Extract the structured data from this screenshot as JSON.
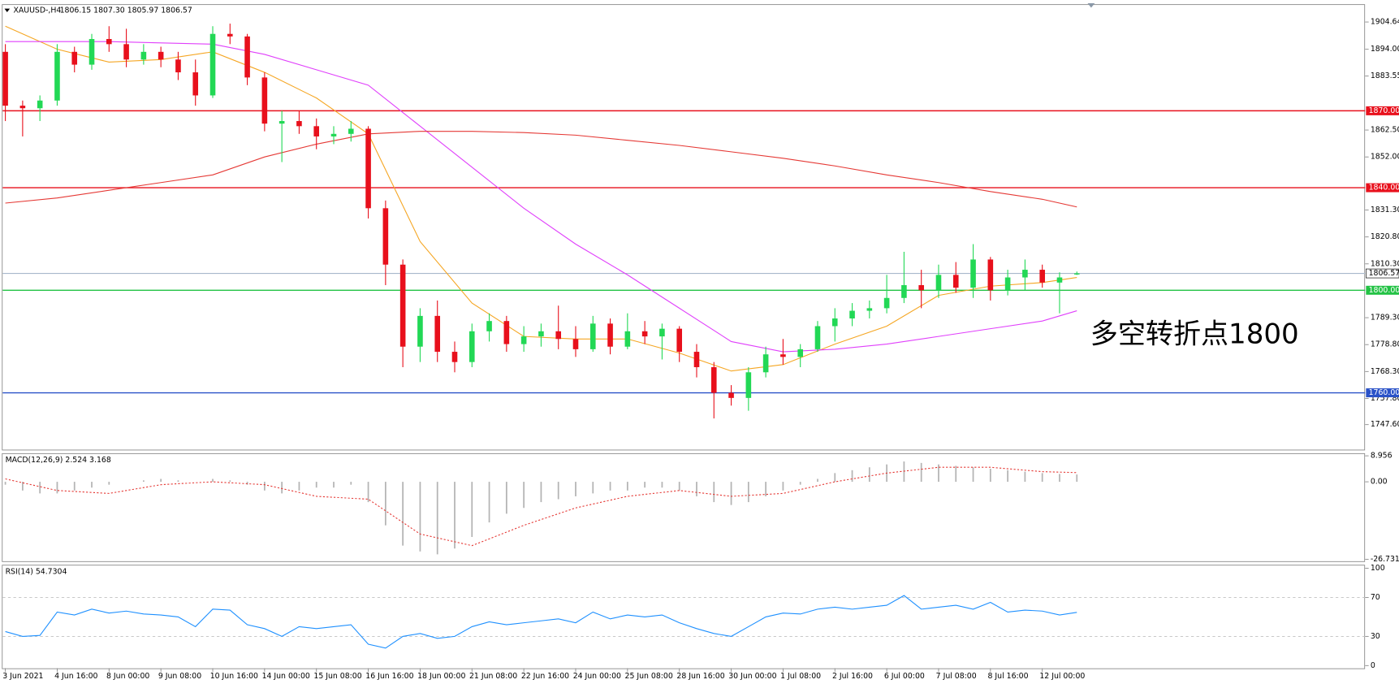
{
  "chart_data": [
    {
      "type": "candlestick",
      "title": "XAUUSD-,H4",
      "subtitle": "1806.15 1807.30 1805.97 1806.57",
      "annotation": "多空转折点1800",
      "categories": [
        "3 Jun 2021",
        null,
        null,
        "4 Jun 16:00",
        null,
        null,
        "8 Jun 00:00",
        null,
        null,
        "9 Jun 08:00",
        null,
        null,
        "10 Jun 16:00",
        null,
        null,
        "14 Jun 00:00",
        null,
        null,
        "15 Jun 08:00",
        null,
        null,
        "16 Jun 16:00",
        null,
        null,
        "18 Jun 00:00",
        null,
        null,
        "21 Jun 08:00",
        null,
        null,
        "22 Jun 16:00",
        null,
        null,
        "24 Jun 00:00",
        null,
        null,
        "25 Jun 08:00",
        null,
        null,
        "28 Jun 16:00",
        null,
        null,
        "30 Jun 00:00",
        null,
        null,
        "1 Jul 08:00",
        null,
        null,
        "2 Jul 16:00",
        null,
        null,
        "6 Jul 00:00",
        null,
        null,
        "7 Jul 08:00",
        null,
        null,
        "8 Jul 16:00",
        null,
        null,
        "12 Jul 00:00",
        null,
        null
      ],
      "ohlc": [
        [
          1893,
          1896,
          1866,
          1872
        ],
        [
          1872,
          1874,
          1860,
          1871
        ],
        [
          1871,
          1876,
          1866,
          1874
        ],
        [
          1874,
          1896,
          1872,
          1893
        ],
        [
          1893,
          1895,
          1885,
          1888
        ],
        [
          1888,
          1900,
          1886,
          1898
        ],
        [
          1898,
          1903,
          1893,
          1896
        ],
        [
          1896,
          1902,
          1887,
          1890
        ],
        [
          1890,
          1896,
          1888,
          1893
        ],
        [
          1893,
          1895,
          1887,
          1890
        ],
        [
          1890,
          1893,
          1882,
          1885
        ],
        [
          1885,
          1890,
          1872,
          1876
        ],
        [
          1876,
          1903,
          1875,
          1900
        ],
        [
          1900,
          1904,
          1896,
          1899
        ],
        [
          1899,
          1900,
          1880,
          1883
        ],
        [
          1883,
          1885,
          1862,
          1865
        ],
        [
          1865,
          1870,
          1850,
          1866
        ],
        [
          1866,
          1870,
          1861,
          1864
        ],
        [
          1864,
          1867,
          1855,
          1860
        ],
        [
          1860,
          1864,
          1857,
          1861
        ],
        [
          1861,
          1866,
          1858,
          1863
        ],
        [
          1863,
          1864,
          1828,
          1832
        ],
        [
          1832,
          1835,
          1802,
          1810
        ],
        [
          1810,
          1812,
          1770,
          1778
        ],
        [
          1778,
          1793,
          1772,
          1790
        ],
        [
          1790,
          1796,
          1772,
          1776
        ],
        [
          1776,
          1780,
          1768,
          1772
        ],
        [
          1772,
          1787,
          1770,
          1784
        ],
        [
          1784,
          1791,
          1780,
          1788
        ],
        [
          1788,
          1790,
          1776,
          1779
        ],
        [
          1779,
          1786,
          1776,
          1782
        ],
        [
          1782,
          1787,
          1778,
          1784
        ],
        [
          1784,
          1794,
          1777,
          1781
        ],
        [
          1781,
          1786,
          1774,
          1777
        ],
        [
          1777,
          1790,
          1776,
          1787
        ],
        [
          1787,
          1789,
          1775,
          1778
        ],
        [
          1778,
          1791,
          1777,
          1784
        ],
        [
          1784,
          1788,
          1779,
          1782
        ],
        [
          1782,
          1787,
          1773,
          1785
        ],
        [
          1785,
          1786,
          1772,
          1776
        ],
        [
          1776,
          1779,
          1766,
          1770
        ],
        [
          1770,
          1772,
          1750,
          1760
        ],
        [
          1760,
          1763,
          1755,
          1758
        ],
        [
          1758,
          1770,
          1753,
          1768
        ],
        [
          1768,
          1778,
          1766,
          1775
        ],
        [
          1775,
          1781,
          1771,
          1774
        ],
        [
          1774,
          1779,
          1770,
          1777
        ],
        [
          1777,
          1788,
          1776,
          1786
        ],
        [
          1786,
          1793,
          1780,
          1789
        ],
        [
          1789,
          1795,
          1786,
          1792
        ],
        [
          1792,
          1796,
          1789,
          1793
        ],
        [
          1793,
          1806,
          1791,
          1797
        ],
        [
          1797,
          1815,
          1795,
          1802
        ],
        [
          1802,
          1808,
          1793,
          1800
        ],
        [
          1800,
          1810,
          1797,
          1806
        ],
        [
          1806,
          1811,
          1799,
          1801
        ],
        [
          1801,
          1818,
          1797,
          1812
        ],
        [
          1812,
          1813,
          1796,
          1800
        ],
        [
          1800,
          1808,
          1798,
          1805
        ],
        [
          1805,
          1812,
          1800,
          1808
        ],
        [
          1808,
          1810,
          1801,
          1803
        ],
        [
          1803,
          1807,
          1791,
          1805
        ],
        [
          1806.15,
          1807.3,
          1805.97,
          1806.57
        ]
      ],
      "up_color": "#22d855",
      "down_color": "#e8101c",
      "series": [
        {
          "color": "#f5a623",
          "x": [
            0,
            3,
            6,
            9,
            12,
            15,
            18,
            21,
            24,
            27,
            30,
            33,
            36,
            39,
            42,
            45,
            48,
            51,
            54,
            57,
            60,
            62
          ],
          "values": [
            1903,
            1894,
            1889,
            1890,
            1893,
            1885,
            1875,
            1861,
            1819,
            1795,
            1782,
            1781,
            1781,
            1775.5,
            1768.5,
            1771,
            1779,
            1786,
            1798,
            1801.6,
            1803,
            1805
          ]
        },
        {
          "color": "#e040fb",
          "x": [
            0,
            3,
            6,
            9,
            12,
            15,
            18,
            21,
            24,
            27,
            30,
            33,
            36,
            39,
            42,
            45,
            48,
            51,
            54,
            57,
            60,
            62
          ],
          "values": [
            1897,
            1897,
            1897,
            1896.5,
            1896,
            1892,
            1886,
            1880,
            1864,
            1848,
            1832,
            1818,
            1806,
            1793,
            1780,
            1776,
            1777,
            1779,
            1782,
            1785,
            1788,
            1792
          ]
        },
        {
          "color": "#e53935",
          "x": [
            0,
            3,
            6,
            9,
            12,
            15,
            18,
            21,
            24,
            27,
            30,
            33,
            36,
            39,
            42,
            45,
            48,
            51,
            54,
            57,
            60,
            62
          ],
          "values": [
            1834,
            1836,
            1839,
            1842,
            1845,
            1852,
            1857,
            1861,
            1862,
            1862,
            1861.5,
            1860.5,
            1858.5,
            1856.5,
            1854,
            1851.5,
            1848.5,
            1845,
            1842,
            1838.5,
            1835.5,
            1832.5
          ]
        }
      ],
      "levels": [
        {
          "value": 1870,
          "label": "1870.00",
          "color": "#e8101c"
        },
        {
          "value": 1840,
          "label": "1840.00",
          "color": "#e8101c"
        },
        {
          "value": 1800,
          "label": "1800.00",
          "color": "#22c244"
        },
        {
          "value": 1760,
          "label": "1760.00",
          "color": "#2a52c8"
        }
      ],
      "last_price": 1806.57,
      "last_price_color": "#a8b8cc",
      "ylim": [
        1737.86,
        1911.26
      ],
      "yticks": [
        1904.64,
        {
          "value": 1894,
          "label": "1894.00"
        },
        1883.55,
        {
          "value": 1862.5,
          "label": "1862.50"
        },
        {
          "value": 1852,
          "label": "1852.00"
        },
        {
          "value": 1831.3,
          "label": "1831.30"
        },
        {
          "value": 1820.8,
          "label": "1820.80"
        },
        {
          "value": 1810.3,
          "label": "1810.30"
        },
        {
          "value": 1789.3,
          "label": "1789.30"
        },
        {
          "value": 1778.8,
          "label": "1778.80"
        },
        {
          "value": 1768.3,
          "label": "1768.30"
        },
        {
          "value": 1757.8,
          "label": "1757.80"
        },
        {
          "value": 1747.6,
          "label": "1747.60"
        }
      ]
    },
    {
      "type": "macd",
      "title": "MACD(12,26,9) 2.524 3.168",
      "color": "#b4b4b4",
      "values": [
        -1,
        -3,
        -4,
        -4,
        -3,
        -2,
        -1,
        0,
        0.5,
        1,
        0.5,
        0,
        1,
        0.5,
        -1,
        -3,
        -4,
        -3,
        -2,
        -2,
        -1,
        -7,
        -15,
        -22,
        -24,
        -25,
        -23,
        -19,
        -14,
        -11,
        -9,
        -7,
        -6,
        -5,
        -4,
        -3,
        -3,
        -2,
        -2,
        -3,
        -5,
        -7,
        -8,
        -7,
        -5,
        -3,
        -1,
        1,
        3,
        4,
        5,
        6,
        7,
        6.5,
        6,
        5.5,
        5,
        4.5,
        4,
        3.5,
        3,
        2.7,
        2.524
      ],
      "signal": {
        "color": "#e53935",
        "x": [
          0,
          3,
          6,
          9,
          12,
          15,
          18,
          21,
          24,
          27,
          30,
          33,
          36,
          39,
          42,
          45,
          48,
          51,
          54,
          57,
          60,
          62
        ],
        "values": [
          1,
          -3,
          -4,
          -1,
          0,
          -1,
          -5,
          -6,
          -18,
          -22,
          -15,
          -9,
          -5,
          -3,
          -5,
          -4,
          0,
          3,
          5,
          5,
          3.5,
          3.168
        ]
      },
      "ylim": [
        -26.731,
        8.956
      ],
      "yticks": [
        8.956,
        {
          "value": 0,
          "label": "0.00"
        },
        -26.731
      ]
    },
    {
      "type": "line",
      "title": "RSI(14) 54.7304",
      "color": "#1e90ff",
      "values": [
        35,
        30,
        31,
        55,
        52,
        58,
        54,
        56,
        53,
        52,
        50,
        40,
        58,
        57,
        42,
        38,
        30,
        40,
        38,
        40,
        42,
        22,
        18,
        30,
        33,
        28,
        30,
        40,
        45,
        42,
        44,
        46,
        48,
        44,
        55,
        48,
        52,
        50,
        52,
        44,
        38,
        33,
        30,
        40,
        50,
        54,
        53,
        58,
        60,
        58,
        60,
        62,
        72,
        58,
        60,
        62,
        58,
        65,
        55,
        57,
        56,
        52,
        54.7304
      ],
      "ylim": [
        0,
        100
      ],
      "yticks": [
        100,
        70,
        30,
        0
      ]
    }
  ]
}
